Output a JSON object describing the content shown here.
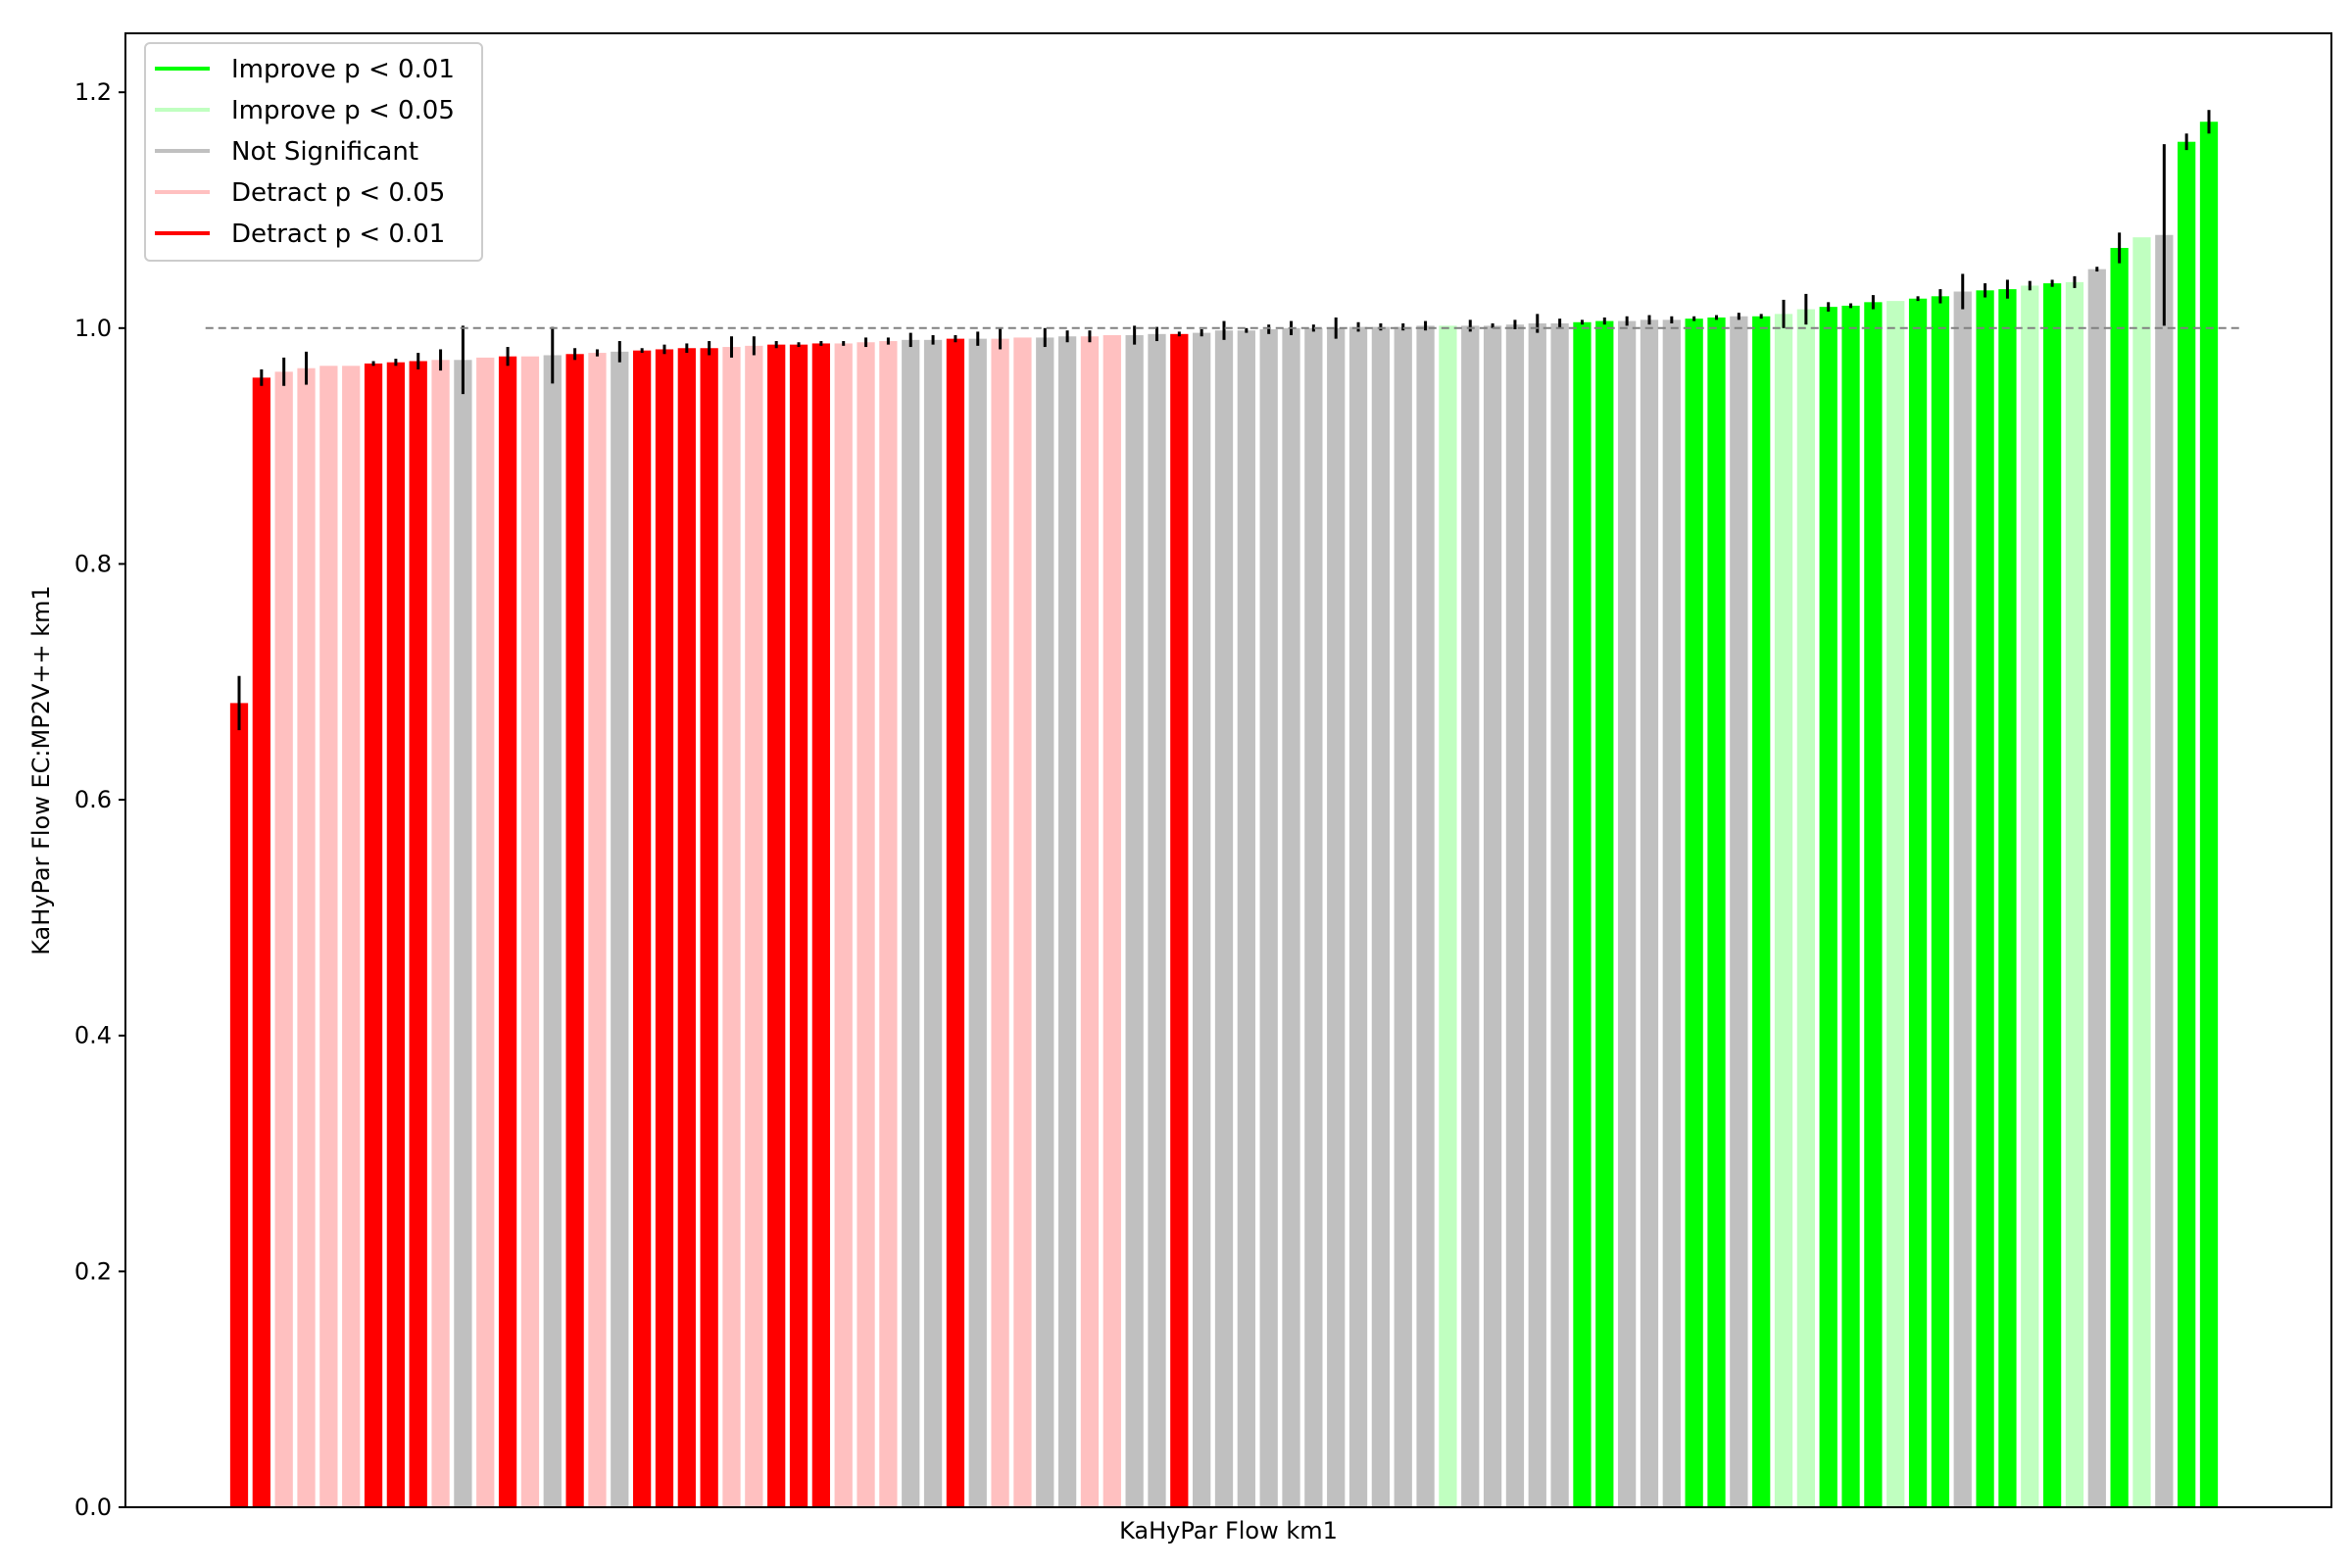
{
  "chart_data": {
    "type": "bar",
    "xlabel": "KaHyPar Flow km1",
    "ylabel": "KaHyPar Flow EC:MP2V++ km1",
    "ylim": [
      0,
      1.25
    ],
    "yticks": [
      "0.0",
      "0.2",
      "0.4",
      "0.6",
      "0.8",
      "1.0",
      "1.2"
    ],
    "yticks_values": [
      0.0,
      0.2,
      0.4,
      0.6,
      0.8,
      1.0,
      1.2
    ],
    "reference_line": 1.0,
    "legend_position": "top-left",
    "colors": {
      "improve_001": "#00ff00",
      "improve_005": "#c0ffc0",
      "not_significant": "#c0c0c0",
      "detract_005": "#ffc0c0",
      "detract_001": "#ff0000"
    },
    "legend": [
      {
        "key": "improve_001",
        "label": "Improve p < 0.01"
      },
      {
        "key": "improve_005",
        "label": "Improve p < 0.05"
      },
      {
        "key": "not_significant",
        "label": "Not Significant"
      },
      {
        "key": "detract_005",
        "label": "Detract p < 0.05"
      },
      {
        "key": "detract_001",
        "label": "Detract p < 0.01"
      }
    ],
    "bars": [
      {
        "v": 0.682,
        "e": 0.023,
        "c": "detract_001"
      },
      {
        "v": 0.958,
        "e": 0.007,
        "c": "detract_001"
      },
      {
        "v": 0.963,
        "e": 0.012,
        "c": "detract_005"
      },
      {
        "v": 0.966,
        "e": 0.014,
        "c": "detract_005"
      },
      {
        "v": 0.968,
        "e": 0.0,
        "c": "detract_005"
      },
      {
        "v": 0.968,
        "e": 0.0,
        "c": "detract_005"
      },
      {
        "v": 0.97,
        "e": 0.002,
        "c": "detract_001"
      },
      {
        "v": 0.971,
        "e": 0.003,
        "c": "detract_001"
      },
      {
        "v": 0.972,
        "e": 0.007,
        "c": "detract_001"
      },
      {
        "v": 0.973,
        "e": 0.009,
        "c": "detract_005"
      },
      {
        "v": 0.973,
        "e": 0.029,
        "c": "not_significant"
      },
      {
        "v": 0.975,
        "e": 0.0,
        "c": "detract_005"
      },
      {
        "v": 0.976,
        "e": 0.008,
        "c": "detract_001"
      },
      {
        "v": 0.976,
        "e": 0.0,
        "c": "detract_005"
      },
      {
        "v": 0.977,
        "e": 0.024,
        "c": "not_significant"
      },
      {
        "v": 0.978,
        "e": 0.005,
        "c": "detract_001"
      },
      {
        "v": 0.979,
        "e": 0.003,
        "c": "detract_005"
      },
      {
        "v": 0.98,
        "e": 0.009,
        "c": "not_significant"
      },
      {
        "v": 0.981,
        "e": 0.002,
        "c": "detract_001"
      },
      {
        "v": 0.982,
        "e": 0.004,
        "c": "detract_001"
      },
      {
        "v": 0.983,
        "e": 0.004,
        "c": "detract_001"
      },
      {
        "v": 0.983,
        "e": 0.006,
        "c": "detract_001"
      },
      {
        "v": 0.984,
        "e": 0.009,
        "c": "detract_005"
      },
      {
        "v": 0.985,
        "e": 0.008,
        "c": "detract_005"
      },
      {
        "v": 0.986,
        "e": 0.003,
        "c": "detract_001"
      },
      {
        "v": 0.986,
        "e": 0.002,
        "c": "detract_001"
      },
      {
        "v": 0.987,
        "e": 0.002,
        "c": "detract_001"
      },
      {
        "v": 0.987,
        "e": 0.002,
        "c": "detract_005"
      },
      {
        "v": 0.988,
        "e": 0.004,
        "c": "detract_005"
      },
      {
        "v": 0.989,
        "e": 0.003,
        "c": "detract_005"
      },
      {
        "v": 0.99,
        "e": 0.006,
        "c": "not_significant"
      },
      {
        "v": 0.99,
        "e": 0.004,
        "c": "not_significant"
      },
      {
        "v": 0.991,
        "e": 0.003,
        "c": "detract_001"
      },
      {
        "v": 0.991,
        "e": 0.006,
        "c": "not_significant"
      },
      {
        "v": 0.991,
        "e": 0.009,
        "c": "detract_005"
      },
      {
        "v": 0.992,
        "e": 0.0,
        "c": "detract_005"
      },
      {
        "v": 0.992,
        "e": 0.008,
        "c": "not_significant"
      },
      {
        "v": 0.993,
        "e": 0.005,
        "c": "not_significant"
      },
      {
        "v": 0.993,
        "e": 0.005,
        "c": "detract_005"
      },
      {
        "v": 0.994,
        "e": 0.0,
        "c": "detract_005"
      },
      {
        "v": 0.994,
        "e": 0.008,
        "c": "not_significant"
      },
      {
        "v": 0.995,
        "e": 0.006,
        "c": "not_significant"
      },
      {
        "v": 0.995,
        "e": 0.002,
        "c": "detract_001"
      },
      {
        "v": 0.996,
        "e": 0.003,
        "c": "not_significant"
      },
      {
        "v": 0.998,
        "e": 0.008,
        "c": "not_significant"
      },
      {
        "v": 0.998,
        "e": 0.002,
        "c": "not_significant"
      },
      {
        "v": 0.999,
        "e": 0.004,
        "c": "not_significant"
      },
      {
        "v": 1.0,
        "e": 0.006,
        "c": "not_significant"
      },
      {
        "v": 1.0,
        "e": 0.003,
        "c": "not_significant"
      },
      {
        "v": 1.0,
        "e": 0.009,
        "c": "not_significant"
      },
      {
        "v": 1.001,
        "e": 0.004,
        "c": "not_significant"
      },
      {
        "v": 1.001,
        "e": 0.003,
        "c": "not_significant"
      },
      {
        "v": 1.001,
        "e": 0.003,
        "c": "not_significant"
      },
      {
        "v": 1.002,
        "e": 0.004,
        "c": "not_significant"
      },
      {
        "v": 1.002,
        "e": 0.0,
        "c": "improve_005"
      },
      {
        "v": 1.002,
        "e": 0.005,
        "c": "not_significant"
      },
      {
        "v": 1.002,
        "e": 0.002,
        "c": "not_significant"
      },
      {
        "v": 1.003,
        "e": 0.004,
        "c": "not_significant"
      },
      {
        "v": 1.004,
        "e": 0.008,
        "c": "not_significant"
      },
      {
        "v": 1.004,
        "e": 0.004,
        "c": "not_significant"
      },
      {
        "v": 1.005,
        "e": 0.002,
        "c": "improve_001"
      },
      {
        "v": 1.006,
        "e": 0.003,
        "c": "improve_001"
      },
      {
        "v": 1.006,
        "e": 0.004,
        "c": "not_significant"
      },
      {
        "v": 1.007,
        "e": 0.004,
        "c": "not_significant"
      },
      {
        "v": 1.007,
        "e": 0.003,
        "c": "not_significant"
      },
      {
        "v": 1.008,
        "e": 0.002,
        "c": "improve_001"
      },
      {
        "v": 1.009,
        "e": 0.002,
        "c": "improve_001"
      },
      {
        "v": 1.01,
        "e": 0.003,
        "c": "not_significant"
      },
      {
        "v": 1.01,
        "e": 0.002,
        "c": "improve_001"
      },
      {
        "v": 1.012,
        "e": 0.012,
        "c": "improve_005"
      },
      {
        "v": 1.016,
        "e": 0.013,
        "c": "improve_005"
      },
      {
        "v": 1.018,
        "e": 0.004,
        "c": "improve_001"
      },
      {
        "v": 1.019,
        "e": 0.002,
        "c": "improve_001"
      },
      {
        "v": 1.022,
        "e": 0.006,
        "c": "improve_001"
      },
      {
        "v": 1.023,
        "e": 0.0,
        "c": "improve_005"
      },
      {
        "v": 1.025,
        "e": 0.002,
        "c": "improve_001"
      },
      {
        "v": 1.027,
        "e": 0.006,
        "c": "improve_001"
      },
      {
        "v": 1.031,
        "e": 0.015,
        "c": "not_significant"
      },
      {
        "v": 1.032,
        "e": 0.006,
        "c": "improve_001"
      },
      {
        "v": 1.033,
        "e": 0.008,
        "c": "improve_001"
      },
      {
        "v": 1.036,
        "e": 0.004,
        "c": "improve_005"
      },
      {
        "v": 1.038,
        "e": 0.003,
        "c": "improve_001"
      },
      {
        "v": 1.039,
        "e": 0.005,
        "c": "improve_005"
      },
      {
        "v": 1.05,
        "e": 0.002,
        "c": "not_significant"
      },
      {
        "v": 1.068,
        "e": 0.013,
        "c": "improve_001"
      },
      {
        "v": 1.077,
        "e": 0.0,
        "c": "improve_005"
      },
      {
        "v": 1.079,
        "e": 0.077,
        "c": "not_significant"
      },
      {
        "v": 1.158,
        "e": 0.007,
        "c": "improve_001"
      },
      {
        "v": 1.175,
        "e": 0.01,
        "c": "improve_001"
      }
    ]
  }
}
